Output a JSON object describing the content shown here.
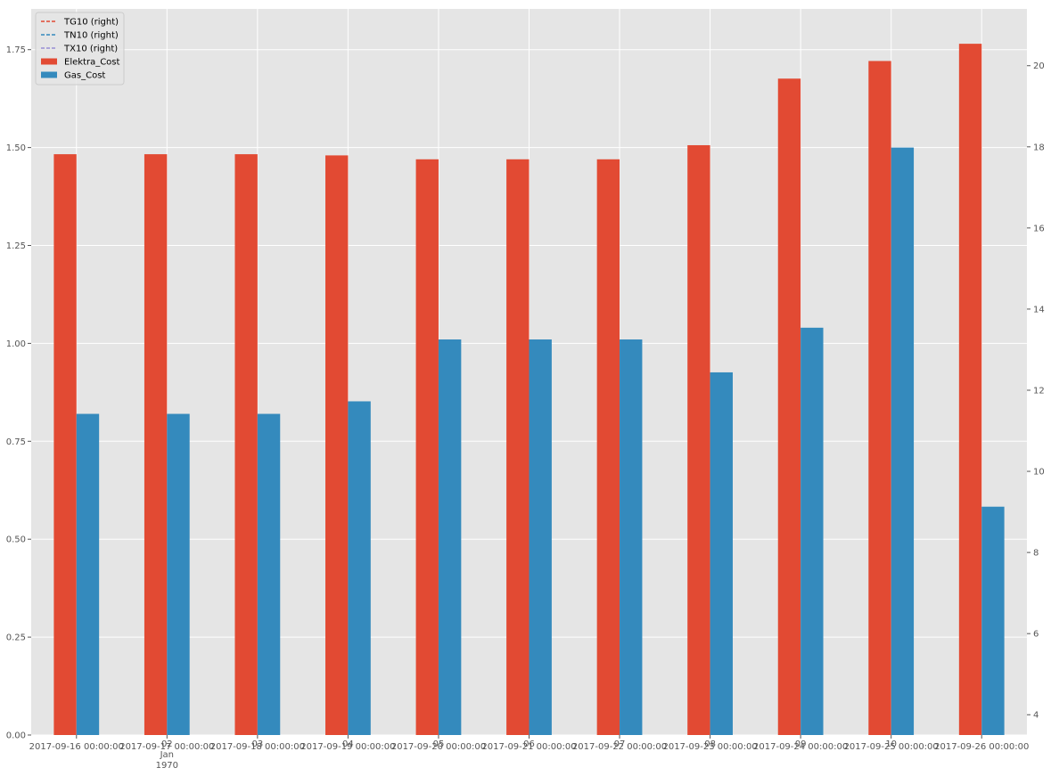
{
  "chart_data": {
    "type": "bar",
    "colors": {
      "Elektra_Cost": "#E24A33",
      "Gas_Cost": "#348ABD",
      "TG10 (right)": "#E24A33",
      "TN10 (right)": "#348ABD",
      "TX10 (right)": "#988ED5",
      "plot_background": "#E5E5E5",
      "grid": "#FFFFFF"
    },
    "categories": [
      "2017-09-16 00:00:00",
      "2017-09-17 00:00:00",
      "2017-09-18 00:00:00",
      "2017-09-19 00:00:00",
      "2017-09-20 00:00:00",
      "2017-09-21 00:00:00",
      "2017-09-22 00:00:00",
      "2017-09-23 00:00:00",
      "2017-09-24 00:00:00",
      "2017-09-25 00:00:00",
      "2017-09-26 00:00:00"
    ],
    "overlapping_tick_labels": [
      {
        "index": 1,
        "label": "02\nJan\n1970"
      },
      {
        "index": 2,
        "label": "03"
      },
      {
        "index": 3,
        "label": "04"
      },
      {
        "index": 4,
        "label": "05"
      },
      {
        "index": 5,
        "label": "06"
      },
      {
        "index": 6,
        "label": "07"
      },
      {
        "index": 7,
        "label": "08"
      },
      {
        "index": 8,
        "label": "09"
      },
      {
        "index": 9,
        "label": "10"
      }
    ],
    "series": [
      {
        "name": "Elektra_Cost",
        "axis": "left",
        "values": [
          1.483,
          1.483,
          1.483,
          1.48,
          1.47,
          1.47,
          1.47,
          1.506,
          1.676,
          1.721,
          1.765
        ]
      },
      {
        "name": "Gas_Cost",
        "axis": "left",
        "values": [
          0.82,
          0.82,
          0.82,
          0.852,
          1.01,
          1.01,
          1.01,
          0.926,
          1.04,
          1.5,
          0.583
        ]
      }
    ],
    "line_series": [
      {
        "name": "TG10 (right)",
        "axis": "right",
        "style": "dashed",
        "values": []
      },
      {
        "name": "TN10 (right)",
        "axis": "right",
        "style": "dashed",
        "values": []
      },
      {
        "name": "TX10 (right)",
        "axis": "right",
        "style": "dashed",
        "values": []
      }
    ],
    "ylim": [
      0,
      1.854
    ],
    "yticks": [
      "0.00",
      "0.25",
      "0.50",
      "0.75",
      "1.00",
      "1.25",
      "1.50",
      "1.75"
    ],
    "y2lim": [
      3.5,
      21.4
    ],
    "y2ticks": [
      "4",
      "6",
      "8",
      "10",
      "12",
      "14",
      "16",
      "18",
      "20"
    ],
    "grid": true,
    "legend_position": "top-left"
  }
}
